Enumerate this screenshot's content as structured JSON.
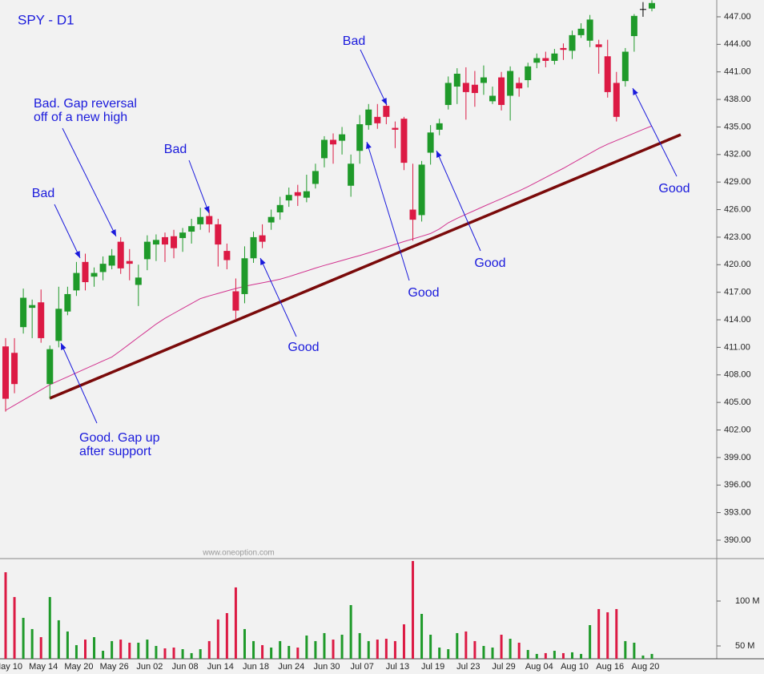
{
  "chart_data": [
    {
      "type": "candlestick",
      "title": "SPY - D1",
      "categories": [
        "May 10",
        null,
        null,
        null,
        "May 14",
        null,
        null,
        null,
        "May 20",
        null,
        null,
        null,
        "May 26",
        null,
        null,
        null,
        "Jun 02",
        null,
        null,
        null,
        "Jun 08",
        null,
        null,
        null,
        "Jun 14",
        null,
        null,
        null,
        "Jun 18",
        null,
        null,
        null,
        "Jun 24",
        null,
        null,
        null,
        "Jun 30",
        null,
        null,
        null,
        "Jul 07",
        null,
        null,
        null,
        "Jul 13",
        null,
        null,
        null,
        "Jul 19",
        null,
        null,
        null,
        "Jul 23",
        null,
        null,
        null,
        "Jul 29",
        null,
        null,
        null,
        "Aug 04",
        null,
        null,
        null,
        "Aug 10",
        null,
        null,
        null,
        "Aug 16",
        null,
        null,
        null,
        "Aug 20",
        null
      ],
      "open": [
        411.1,
        410.4,
        413.2,
        415.3,
        415.9,
        407.0,
        411.7,
        414.9,
        417.2,
        420.3,
        418.7,
        419.2,
        419.9,
        422.5,
        420.4,
        417.8,
        420.6,
        422.2,
        423.0,
        423.1,
        422.9,
        423.6,
        424.4,
        425.3,
        424.4,
        421.5,
        417.1,
        416.8,
        420.7,
        423.2,
        424.6,
        425.7,
        427.0,
        427.9,
        427.3,
        428.8,
        431.6,
        433.6,
        433.5,
        428.6,
        432.4,
        435.2,
        436.1,
        437.3,
        434.9,
        435.9,
        426.0,
        425.4,
        432.2,
        434.7,
        437.4,
        439.4,
        439.8,
        439.6,
        439.8,
        437.8,
        440.4,
        438.4,
        439.8,
        440.1,
        442.0,
        442.5,
        442.2,
        443.6,
        443.3,
        445.0,
        444.4,
        444.0,
        442.7,
        439.8,
        440.0,
        444.9,
        447.8,
        447.9
      ],
      "high": [
        412.0,
        412.0,
        417.4,
        416.2,
        417.3,
        411.2,
        417.6,
        417.6,
        420.3,
        421.2,
        419.7,
        420.9,
        421.7,
        423.0,
        421.7,
        420.0,
        423.2,
        423.3,
        423.5,
        423.8,
        424.0,
        425.0,
        426.2,
        426.0,
        425.0,
        422.3,
        418.5,
        422.0,
        423.6,
        424.4,
        426.0,
        427.4,
        428.4,
        428.7,
        429.8,
        431.0,
        434.0,
        434.3,
        435.0,
        432.0,
        436.3,
        437.5,
        437.5,
        437.6,
        435.6,
        436.1,
        431.0,
        431.3,
        435.2,
        435.9,
        440.5,
        441.4,
        441.5,
        441.1,
        441.7,
        439.4,
        441.0,
        441.6,
        440.4,
        442.0,
        443.0,
        443.2,
        443.5,
        444.1,
        445.5,
        446.3,
        447.2,
        444.5,
        444.5,
        441.0,
        443.6,
        447.3,
        448.6,
        448.8
      ],
      "low": [
        404.0,
        406.0,
        412.5,
        412.0,
        411.5,
        405.4,
        411.0,
        414.5,
        416.6,
        417.2,
        417.6,
        418.3,
        419.5,
        419.0,
        418.3,
        415.5,
        419.4,
        420.4,
        420.3,
        420.7,
        421.4,
        422.3,
        423.8,
        423.5,
        419.8,
        419.5,
        414.0,
        415.8,
        420.2,
        421.8,
        423.8,
        424.9,
        426.3,
        426.4,
        426.8,
        428.3,
        430.6,
        431.0,
        432.0,
        427.4,
        431.0,
        434.7,
        434.8,
        435.3,
        432.7,
        430.3,
        422.6,
        424.7,
        430.9,
        434.1,
        436.9,
        437.5,
        435.8,
        437.2,
        438.5,
        437.5,
        436.8,
        435.7,
        438.3,
        439.3,
        441.4,
        441.5,
        441.8,
        442.3,
        442.4,
        444.7,
        443.7,
        440.8,
        438.2,
        435.6,
        439.4,
        443.2,
        447.0,
        447.6
      ],
      "close": [
        405.4,
        407.0,
        416.4,
        415.6,
        412.0,
        410.8,
        415.2,
        416.8,
        419.1,
        418.1,
        419.1,
        420.1,
        421.0,
        419.6,
        420.1,
        418.6,
        422.5,
        422.7,
        422.2,
        421.8,
        423.5,
        424.2,
        425.2,
        424.4,
        422.2,
        420.5,
        415.0,
        420.7,
        423.0,
        422.5,
        425.2,
        426.5,
        427.6,
        427.5,
        428.0,
        430.2,
        433.6,
        433.1,
        434.2,
        431.0,
        435.3,
        436.9,
        435.4,
        436.1,
        434.7,
        431.1,
        424.9,
        430.9,
        434.4,
        435.4,
        439.8,
        440.8,
        438.8,
        438.7,
        440.4,
        438.4,
        437.4,
        441.1,
        439.2,
        441.6,
        442.5,
        442.2,
        443.0,
        443.4,
        445.0,
        445.7,
        446.7,
        443.7,
        438.8,
        436.1,
        443.2,
        447.1,
        447.8,
        448.5
      ],
      "up_color": "#1f9a2a",
      "down_color": "#dc1a44",
      "doji_color": "#000000",
      "moving_average": {
        "color": "#d2338f",
        "values": [
          404.14,
          404.7,
          405.26,
          405.81,
          406.37,
          406.93,
          407.36,
          407.79,
          408.22,
          408.66,
          409.09,
          409.52,
          409.95,
          410.64,
          411.37,
          412.09,
          412.81,
          413.53,
          414.16,
          414.7,
          415.24,
          415.77,
          416.31,
          416.6,
          416.87,
          417.14,
          417.41,
          417.65,
          417.84,
          418.03,
          418.22,
          418.42,
          418.7,
          419.01,
          419.32,
          419.63,
          419.92,
          420.19,
          420.46,
          420.73,
          420.99,
          421.29,
          421.6,
          421.91,
          422.22,
          422.52,
          422.81,
          423.1,
          423.39,
          423.89,
          424.56,
          425.05,
          425.49,
          425.92,
          426.35,
          426.77,
          427.19,
          427.62,
          428.04,
          428.5,
          429.0,
          429.5,
          430.0,
          430.5,
          431.04,
          431.58,
          432.12,
          432.66,
          433.13,
          433.53,
          433.92,
          434.32,
          434.72,
          435.12
        ]
      },
      "ylim": [
        387.99,
        448.83
      ],
      "yticks": [
        {
          "value": 390,
          "label": "390.00"
        },
        {
          "value": 393,
          "label": "393.00"
        },
        {
          "value": 396,
          "label": "396.00"
        },
        {
          "value": 399,
          "label": "399.00"
        },
        {
          "value": 402,
          "label": "402.00"
        },
        {
          "value": 405,
          "label": "405.00"
        },
        {
          "value": 408,
          "label": "408.00"
        },
        {
          "value": 411,
          "label": "411.00"
        },
        {
          "value": 414,
          "label": "414.00"
        },
        {
          "value": 417,
          "label": "417.00"
        },
        {
          "value": 420,
          "label": "420.00"
        },
        {
          "value": 423,
          "label": "423.00"
        },
        {
          "value": 426,
          "label": "426.00"
        },
        {
          "value": 429,
          "label": "429.00"
        },
        {
          "value": 432,
          "label": "432.00"
        },
        {
          "value": 435,
          "label": "435.00"
        },
        {
          "value": 438,
          "label": "438.00"
        },
        {
          "value": 441,
          "label": "441.00"
        },
        {
          "value": 444,
          "label": "444.00"
        },
        {
          "value": 447,
          "label": "447.00"
        }
      ],
      "annotations": [
        {
          "lines": [
            "Bad"
          ]
        },
        {
          "lines": [
            "Bad. Gap reversal",
            "off of a new high"
          ]
        },
        {
          "lines": [
            "Bad"
          ]
        },
        {
          "lines": [
            "Bad"
          ]
        },
        {
          "lines": [
            "Good. Gap up",
            "after support"
          ]
        },
        {
          "lines": [
            "Good"
          ]
        },
        {
          "lines": [
            "Good"
          ]
        },
        {
          "lines": [
            "Good"
          ]
        },
        {
          "lines": [
            "Good"
          ]
        }
      ],
      "watermark": "www.oneoption.com"
    },
    {
      "type": "volume",
      "values": [
        132.1,
        104.5,
        81.3,
        68.8,
        59.8,
        104.5,
        78.6,
        66.1,
        50.9,
        57.1,
        59.8,
        44.6,
        55.4,
        57.1,
        53.6,
        53.6,
        57.1,
        50.0,
        47.3,
        48.2,
        46.4,
        42.0,
        46.4,
        55.4,
        79.5,
        86.6,
        115.2,
        68.8,
        55.4,
        50.9,
        48.2,
        55.4,
        50.0,
        48.2,
        61.6,
        55.4,
        64.3,
        57.1,
        62.5,
        95.5,
        64.3,
        55.4,
        57.1,
        58.0,
        55.4,
        74.1,
        144.6,
        85.7,
        62.5,
        48.2,
        46.4,
        64.3,
        66.1,
        55.4,
        50.0,
        48.2,
        62.5,
        58.0,
        53.6,
        45.5,
        41.1,
        42.0,
        44.6,
        42.0,
        42.9,
        41.1,
        73.2,
        91.1,
        87.5,
        91.1,
        55.4,
        53.6,
        39.3,
        41.1
      ],
      "ylim": [
        35.7,
        147.3
      ],
      "yticks": [
        {
          "value": 50,
          "label": "50 M"
        },
        {
          "value": 100,
          "label": "100 M"
        }
      ]
    }
  ]
}
